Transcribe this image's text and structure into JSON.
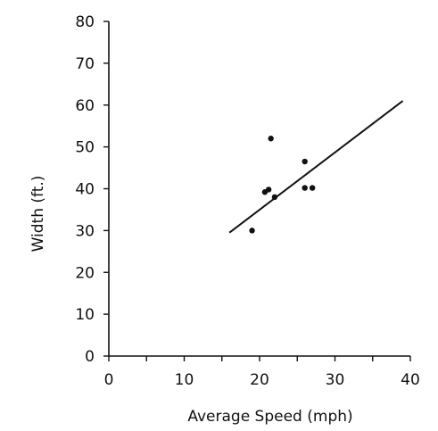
{
  "chart_data": {
    "type": "scatter",
    "title": "",
    "xlabel": "Average Speed (mph)",
    "ylabel": "Width (ft.)",
    "xlim": [
      0,
      40
    ],
    "ylim": [
      0,
      80
    ],
    "x_ticks": [
      0,
      10,
      20,
      30,
      40
    ],
    "y_ticks": [
      0,
      10,
      20,
      30,
      40,
      50,
      60,
      70,
      80
    ],
    "grid": false,
    "legend": "none",
    "points": [
      {
        "x": 19,
        "y": 30
      },
      {
        "x": 20.7,
        "y": 39.2
      },
      {
        "x": 21.2,
        "y": 39.8
      },
      {
        "x": 21.5,
        "y": 52
      },
      {
        "x": 22,
        "y": 38
      },
      {
        "x": 26,
        "y": 46.5
      },
      {
        "x": 26,
        "y": 40.2
      },
      {
        "x": 27,
        "y": 40.2
      }
    ],
    "trendline": {
      "x": [
        16,
        39
      ],
      "y": [
        29.5,
        61
      ]
    },
    "colors": {
      "axis": "#111111",
      "marker": "#111111",
      "trendline": "#111111"
    }
  }
}
